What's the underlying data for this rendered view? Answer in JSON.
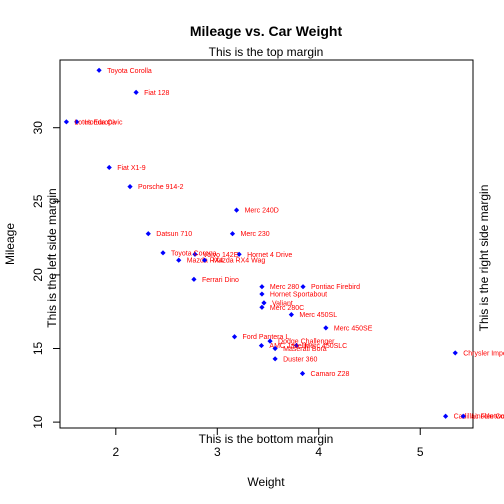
{
  "chart_data": {
    "type": "scatter",
    "title": "Mileage vs. Car Weight",
    "xlabel": "Weight",
    "ylabel": "Mileage",
    "xlim": [
      1.45,
      5.52
    ],
    "ylim": [
      9.6,
      34.6
    ],
    "xticks": [
      2,
      3,
      4,
      5
    ],
    "yticks": [
      10,
      15,
      20,
      25,
      30
    ],
    "grid": false,
    "marker_color": "#0000ff",
    "label_color": "#ff0000",
    "margin_texts": {
      "top": "This is the top margin",
      "bottom": "This is the bottom margin",
      "left": "This is the left side margin",
      "right": "This is the right side margin"
    },
    "points": [
      {
        "label": "Toyota Corolla",
        "x": 1.835,
        "y": 33.9
      },
      {
        "label": "Fiat 128",
        "x": 2.2,
        "y": 32.4
      },
      {
        "label": "Honda Civic",
        "x": 1.615,
        "y": 30.4
      },
      {
        "label": "Lotus Europa",
        "x": 1.513,
        "y": 30.4
      },
      {
        "label": "Fiat X1-9",
        "x": 1.935,
        "y": 27.3
      },
      {
        "label": "Porsche 914-2",
        "x": 2.14,
        "y": 26.0
      },
      {
        "label": "Merc 240D",
        "x": 3.19,
        "y": 24.4
      },
      {
        "label": "Merc 230",
        "x": 3.15,
        "y": 22.8
      },
      {
        "label": "Datsun 710",
        "x": 2.32,
        "y": 22.8
      },
      {
        "label": "Hornet 4 Drive",
        "x": 3.215,
        "y": 21.4
      },
      {
        "label": "Volvo 142E",
        "x": 2.78,
        "y": 21.4
      },
      {
        "label": "Toyota Corona",
        "x": 2.465,
        "y": 21.5
      },
      {
        "label": "Mazda RX4",
        "x": 2.62,
        "y": 21.0
      },
      {
        "label": "Mazda RX4 Wag",
        "x": 2.875,
        "y": 21.0
      },
      {
        "label": "Ferrari Dino",
        "x": 2.77,
        "y": 19.7
      },
      {
        "label": "Merc 280",
        "x": 3.44,
        "y": 19.2
      },
      {
        "label": "Pontiac Firebird",
        "x": 3.845,
        "y": 19.2
      },
      {
        "label": "Hornet Sportabout",
        "x": 3.44,
        "y": 18.7
      },
      {
        "label": "Valiant",
        "x": 3.46,
        "y": 18.1
      },
      {
        "label": "Merc 280C",
        "x": 3.44,
        "y": 17.8
      },
      {
        "label": "Merc 450SL",
        "x": 3.73,
        "y": 17.3
      },
      {
        "label": "Merc 450SE",
        "x": 4.07,
        "y": 16.4
      },
      {
        "label": "Ford Pantera L",
        "x": 3.17,
        "y": 15.8
      },
      {
        "label": "Dodge Challenger",
        "x": 3.52,
        "y": 15.5
      },
      {
        "label": "Merc 450SLC",
        "x": 3.78,
        "y": 15.2
      },
      {
        "label": "AMC Javelin",
        "x": 3.435,
        "y": 15.2
      },
      {
        "label": "Maserati Bora",
        "x": 3.57,
        "y": 15.0
      },
      {
        "label": "Duster 360",
        "x": 3.57,
        "y": 14.3
      },
      {
        "label": "Chrysler Imperial",
        "x": 5.345,
        "y": 14.7
      },
      {
        "label": "Camaro Z28",
        "x": 3.84,
        "y": 13.3
      },
      {
        "label": "Cadillac Fleetwood",
        "x": 5.25,
        "y": 10.4
      },
      {
        "label": "Lincoln Continental",
        "x": 5.424,
        "y": 10.4
      }
    ]
  }
}
